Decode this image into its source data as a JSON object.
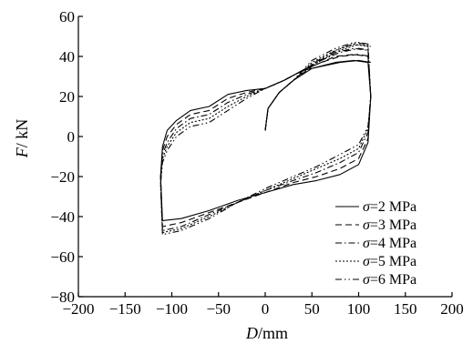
{
  "chart_data": {
    "type": "line",
    "xlabel": {
      "var": "D",
      "unit": "/mm"
    },
    "ylabel": {
      "var": "F",
      "unit": "/ kN"
    },
    "xlim": [
      -200,
      200
    ],
    "ylim": [
      -80,
      60
    ],
    "xticks": [
      -200,
      -150,
      -100,
      -50,
      0,
      50,
      100,
      150,
      200
    ],
    "yticks": [
      -80,
      -60,
      -40,
      -20,
      0,
      20,
      40,
      60
    ],
    "tick_labels": {
      "x": [
        "−200",
        "−150",
        "−100",
        "−50",
        "0",
        "50",
        "100",
        "150",
        "200"
      ],
      "y": [
        "−80",
        "−60",
        "−40",
        "−20",
        "0",
        "20",
        "40",
        "60"
      ]
    },
    "grid": false,
    "legend_position": "bottom-right",
    "series": [
      {
        "name": "σ=2 MPa",
        "sigma": "σ",
        "label_rest": "=2 MPa",
        "dash": "",
        "x": [
          0,
          3,
          15,
          30,
          50,
          75,
          95,
          110,
          113,
          110,
          100,
          80,
          55,
          30,
          0,
          -30,
          -60,
          -90,
          -110,
          -112,
          -110,
          -105,
          -95,
          -80,
          -60,
          -40,
          -20,
          0,
          20,
          40,
          60,
          80,
          100,
          113
        ],
        "y": [
          3,
          14,
          22,
          28,
          34,
          37,
          38,
          37,
          20,
          -3,
          -14,
          -19,
          -22,
          -24,
          -28,
          -32,
          -37,
          -41,
          -42,
          -20,
          -5,
          3,
          8,
          13,
          15,
          21,
          23,
          24,
          28,
          33,
          35,
          37,
          38,
          37
        ]
      },
      {
        "name": "σ=3 MPa",
        "sigma": "σ",
        "label_rest": "=3 MPa",
        "dash": "7,4",
        "x": [
          0,
          3,
          15,
          30,
          50,
          75,
          95,
          110,
          113,
          110,
          100,
          80,
          55,
          30,
          0,
          -30,
          -60,
          -90,
          -110,
          -112,
          -110,
          -105,
          -95,
          -80,
          -60,
          -40,
          -20,
          0,
          20,
          40,
          60,
          80,
          100,
          113
        ],
        "y": [
          3,
          14,
          22,
          28,
          35,
          40,
          41,
          40,
          20,
          -1,
          -11,
          -16,
          -20,
          -23,
          -28,
          -33,
          -38,
          -43,
          -45,
          -20,
          -7,
          0,
          6,
          11,
          13,
          19,
          22,
          24,
          28,
          33,
          37,
          40,
          41,
          40
        ]
      },
      {
        "name": "σ=4 MPa",
        "sigma": "σ",
        "label_rest": "=4 MPa",
        "dash": "7,3,1.5,3",
        "x": [
          0,
          3,
          15,
          30,
          50,
          75,
          95,
          110,
          113,
          110,
          100,
          80,
          55,
          30,
          0,
          -30,
          -60,
          -90,
          -110,
          -112,
          -110,
          -105,
          -95,
          -80,
          -60,
          -40,
          -20,
          0,
          20,
          40,
          60,
          80,
          100,
          113
        ],
        "y": [
          3,
          14,
          22,
          28,
          36,
          42,
          44,
          43,
          20,
          2,
          -8,
          -13,
          -18,
          -22,
          -27,
          -33,
          -39,
          -45,
          -47,
          -22,
          -9,
          -3,
          4,
          9,
          11,
          17,
          21,
          24,
          28,
          33,
          38,
          42,
          44,
          43
        ]
      },
      {
        "name": "σ=5 MPa",
        "sigma": "σ",
        "label_rest": "=5 MPa",
        "dash": "2,2",
        "x": [
          0,
          3,
          15,
          30,
          50,
          75,
          95,
          110,
          113,
          110,
          100,
          80,
          55,
          30,
          0,
          -30,
          -60,
          -90,
          -110,
          -112,
          -110,
          -105,
          -95,
          -80,
          -60,
          -40,
          -20,
          0,
          20,
          40,
          60,
          80,
          100,
          113
        ],
        "y": [
          3,
          14,
          22,
          28,
          37,
          43,
          46,
          45,
          20,
          4,
          -6,
          -11,
          -16,
          -21,
          -27,
          -33,
          -40,
          -46,
          -48,
          -23,
          -11,
          -5,
          2,
          7,
          9,
          15,
          20,
          24,
          28,
          33,
          38,
          43,
          46,
          45
        ]
      },
      {
        "name": "σ=6 MPa",
        "sigma": "σ",
        "label_rest": "=6 MPa",
        "dash": "7,3,1.5,3,1.5,3",
        "x": [
          0,
          3,
          15,
          30,
          50,
          75,
          95,
          110,
          113,
          110,
          100,
          80,
          55,
          30,
          0,
          -30,
          -60,
          -90,
          -110,
          -112,
          -110,
          -105,
          -95,
          -80,
          -60,
          -40,
          -20,
          0,
          20,
          40,
          60,
          80,
          100,
          113
        ],
        "y": [
          3,
          14,
          22,
          28,
          38,
          44,
          47,
          46,
          20,
          5,
          -4,
          -9,
          -15,
          -20,
          -26,
          -33,
          -41,
          -47,
          -49,
          -24,
          -13,
          -7,
          0,
          5,
          7,
          13,
          19,
          24,
          28,
          33,
          39,
          44,
          47,
          46
        ]
      }
    ]
  }
}
